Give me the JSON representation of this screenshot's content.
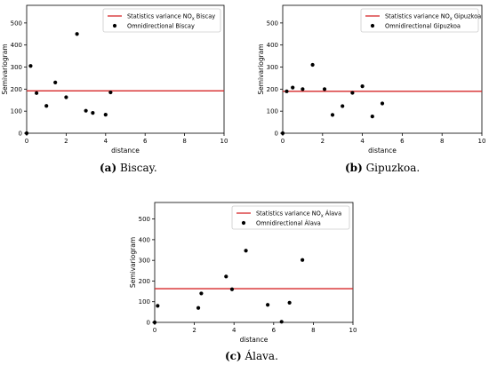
{
  "chart_data": [
    {
      "type": "scatter",
      "caption_letter": "(a)",
      "caption_text": " Biscay.",
      "xlabel": "distance",
      "ylabel": "Semivariogram",
      "xlim": [
        0,
        10
      ],
      "ylim": [
        0,
        580
      ],
      "xticks": [
        0,
        2,
        4,
        6,
        8,
        10
      ],
      "yticks": [
        0,
        100,
        200,
        300,
        400,
        500
      ],
      "legend_location": "upper right",
      "legend": [
        {
          "prefix": "Statistics variance NO",
          "sub": "x",
          "suffix": " Biscay"
        },
        {
          "prefix": "Omnidirectional Biscay",
          "sub": "",
          "suffix": ""
        }
      ],
      "variance_line": 192,
      "line_color": "#d62728",
      "point_color": "#000000",
      "points": [
        {
          "x": 0.0,
          "y": 0
        },
        {
          "x": 0.2,
          "y": 305
        },
        {
          "x": 0.5,
          "y": 182
        },
        {
          "x": 1.0,
          "y": 124
        },
        {
          "x": 1.45,
          "y": 230
        },
        {
          "x": 2.0,
          "y": 163
        },
        {
          "x": 2.55,
          "y": 450
        },
        {
          "x": 3.0,
          "y": 102
        },
        {
          "x": 3.35,
          "y": 92
        },
        {
          "x": 4.0,
          "y": 84
        },
        {
          "x": 4.25,
          "y": 185
        }
      ]
    },
    {
      "type": "scatter",
      "caption_letter": "(b)",
      "caption_text": " Gipuzkoa.",
      "xlabel": "distance",
      "ylabel": "Semivariogram",
      "xlim": [
        0,
        10
      ],
      "ylim": [
        0,
        580
      ],
      "xticks": [
        0,
        2,
        4,
        6,
        8,
        10
      ],
      "yticks": [
        0,
        100,
        200,
        300,
        400,
        500
      ],
      "legend_location": "upper right",
      "legend": [
        {
          "prefix": "Statistics variance NO",
          "sub": "x",
          "suffix": " Gipuzkoa"
        },
        {
          "prefix": "Omnidirectional Gipuzkoa",
          "sub": "",
          "suffix": ""
        }
      ],
      "variance_line": 190,
      "line_color": "#d62728",
      "point_color": "#000000",
      "points": [
        {
          "x": 0.0,
          "y": 0
        },
        {
          "x": 0.2,
          "y": 190
        },
        {
          "x": 0.5,
          "y": 207
        },
        {
          "x": 1.0,
          "y": 200
        },
        {
          "x": 1.5,
          "y": 310
        },
        {
          "x": 2.1,
          "y": 200
        },
        {
          "x": 2.5,
          "y": 83
        },
        {
          "x": 3.0,
          "y": 123
        },
        {
          "x": 3.5,
          "y": 183
        },
        {
          "x": 4.0,
          "y": 213
        },
        {
          "x": 4.5,
          "y": 76
        },
        {
          "x": 5.0,
          "y": 135
        }
      ]
    },
    {
      "type": "scatter",
      "caption_letter": "(c)",
      "caption_text": " Álava.",
      "xlabel": "distance",
      "ylabel": "Semivariogram",
      "xlim": [
        0,
        10
      ],
      "ylim": [
        0,
        580
      ],
      "xticks": [
        0,
        2,
        4,
        6,
        8,
        10
      ],
      "yticks": [
        0,
        100,
        200,
        300,
        400,
        500
      ],
      "legend_location": "upper right",
      "legend": [
        {
          "prefix": "Statistics variance NO",
          "sub": "x",
          "suffix": " Álava"
        },
        {
          "prefix": "Omnidirectional Álava",
          "sub": "",
          "suffix": ""
        }
      ],
      "variance_line": 163,
      "line_color": "#d62728",
      "point_color": "#000000",
      "points": [
        {
          "x": 0.0,
          "y": 0
        },
        {
          "x": 0.15,
          "y": 80
        },
        {
          "x": 2.2,
          "y": 70
        },
        {
          "x": 2.35,
          "y": 140
        },
        {
          "x": 3.6,
          "y": 222
        },
        {
          "x": 3.9,
          "y": 160
        },
        {
          "x": 4.6,
          "y": 347
        },
        {
          "x": 5.7,
          "y": 85
        },
        {
          "x": 6.4,
          "y": 3
        },
        {
          "x": 6.8,
          "y": 95
        },
        {
          "x": 7.45,
          "y": 302
        }
      ]
    }
  ]
}
